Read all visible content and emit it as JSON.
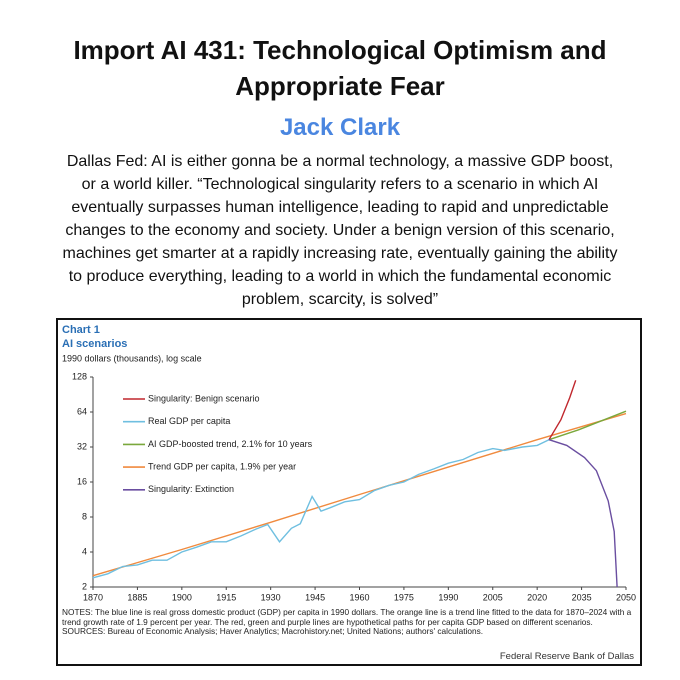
{
  "title": "Import AI 431: Technological Optimism and Appropriate Fear",
  "author": "Jack Clark",
  "body": "Dallas Fed: AI is either gonna be a normal technology, a massive GDP boost, or a world killer. “Technological singularity refers to a scenario in which AI eventually surpasses human intelligence, leading to rapid and unpredictable changes to the economy and society. Under a benign version of this scenario, machines get smarter at a rapidly increasing rate, eventually gaining the ability to produce everything, leading to a world in which the fundamental economic problem, scarcity, is solved”",
  "chart_data": {
    "type": "line",
    "chart_label": "Chart 1",
    "title": "AI scenarios",
    "y_label": "1990 dollars (thousands),  log scale",
    "log_scale": true,
    "legend": "upper left",
    "xlim": [
      1870,
      2050
    ],
    "xticks": [
      1870,
      1885,
      1900,
      1915,
      1930,
      1945,
      1960,
      1975,
      1990,
      2005,
      2020,
      2035,
      2050
    ],
    "ylim": [
      2,
      128
    ],
    "yticks": [
      2,
      4,
      8,
      16,
      32,
      64,
      128
    ],
    "series": [
      {
        "name": "Singularity: Benign scenario",
        "color": "#c0272d",
        "x": [
          2024,
          2028,
          2031,
          2033
        ],
        "values": [
          37,
          55,
          85,
          120
        ]
      },
      {
        "name": "Real GDP per capita",
        "color": "#6fbfe0",
        "x": [
          1870,
          1875,
          1880,
          1885,
          1890,
          1895,
          1900,
          1905,
          1910,
          1915,
          1920,
          1925,
          1929,
          1933,
          1937,
          1940,
          1944,
          1947,
          1950,
          1955,
          1960,
          1965,
          1970,
          1975,
          1980,
          1985,
          1990,
          1995,
          2000,
          2005,
          2009,
          2015,
          2020,
          2024
        ],
        "values": [
          2.4,
          2.6,
          3.0,
          3.1,
          3.4,
          3.4,
          4.0,
          4.4,
          4.9,
          4.9,
          5.5,
          6.3,
          6.9,
          4.9,
          6.4,
          7.0,
          12,
          9.0,
          9.6,
          10.8,
          11.3,
          13.5,
          15,
          16,
          18.6,
          20.7,
          23.2,
          25,
          28.7,
          31,
          29.9,
          32,
          33,
          37
        ]
      },
      {
        "name": "AI GDP-boosted trend, 2.1% for 10 years",
        "color": "#7aa83c",
        "x": [
          2024,
          2034,
          2050
        ],
        "values": [
          37,
          45,
          65
        ]
      },
      {
        "name": "Trend GDP per capita, 1.9% per year",
        "color": "#f08a3e",
        "x": [
          1870,
          1900,
          1930,
          1960,
          1990,
          2020,
          2050
        ],
        "values": [
          2.5,
          4.2,
          7.2,
          12.5,
          21.5,
          37,
          62
        ]
      },
      {
        "name": "Singularity: Extinction",
        "color": "#6a4ea0",
        "x": [
          2024,
          2030,
          2036,
          2040,
          2044,
          2046,
          2047
        ],
        "values": [
          37,
          33,
          26,
          20,
          11,
          6,
          2
        ]
      }
    ],
    "notes": "NOTES: The blue line is real gross domestic product (GDP) per capita in 1990 dollars. The orange line is a trend line fitted to the data for 1870–2024 with a trend growth rate of 1.9 percent per year. The red, green and purple lines are hypothetical paths for per capita GDP based on different scenarios.",
    "sources": "SOURCES: Bureau of Economic Analysis; Haver Analytics; Macrohistory.net; United Nations; authors' calculations.",
    "credit": "Federal Reserve Bank of Dallas"
  }
}
